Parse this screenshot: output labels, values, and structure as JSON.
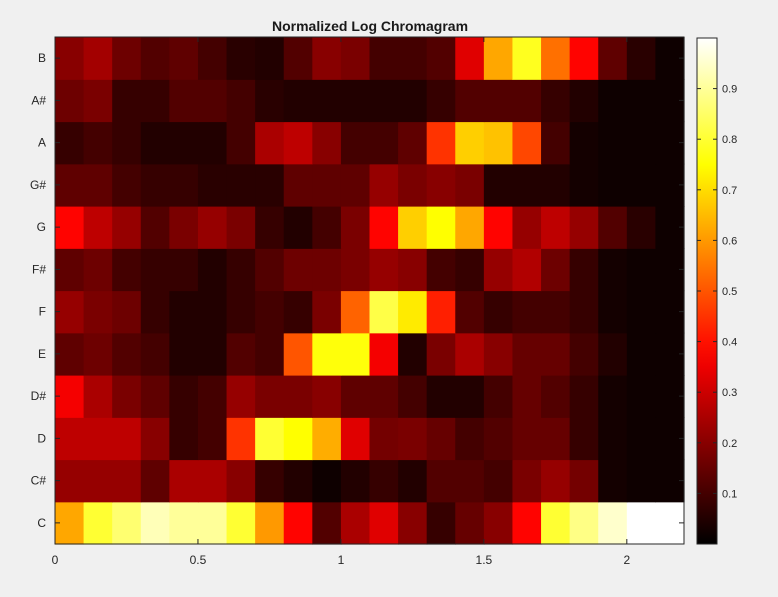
{
  "chart_data": {
    "type": "heatmap",
    "title": "Normalized Log Chromagram",
    "xlabel": "",
    "ylabel": "",
    "x_ticks": [
      {
        "value": 0,
        "label": "0"
      },
      {
        "value": 0.5,
        "label": "0.5"
      },
      {
        "value": 1,
        "label": "1"
      },
      {
        "value": 1.5,
        "label": "1.5"
      },
      {
        "value": 2,
        "label": "2"
      }
    ],
    "xlim": [
      0,
      2.2
    ],
    "y_labels": [
      "C",
      "C#",
      "D",
      "D#",
      "E",
      "F",
      "F#",
      "G",
      "G#",
      "A",
      "A#",
      "B"
    ],
    "colormap": "hot",
    "clim": [
      0,
      1
    ],
    "colorbar_ticks": [
      {
        "value": 0.1,
        "label": "0.1"
      },
      {
        "value": 0.2,
        "label": "0.2"
      },
      {
        "value": 0.3,
        "label": "0.3"
      },
      {
        "value": 0.4,
        "label": "0.4"
      },
      {
        "value": 0.5,
        "label": "0.5"
      },
      {
        "value": 0.6,
        "label": "0.6"
      },
      {
        "value": 0.7,
        "label": "0.7"
      },
      {
        "value": 0.8,
        "label": "0.8"
      },
      {
        "value": 0.9,
        "label": "0.9"
      }
    ],
    "time_bins": 22,
    "values": [
      [
        0.62,
        0.8,
        0.86,
        0.93,
        0.9,
        0.9,
        0.8,
        0.6,
        0.38,
        0.12,
        0.25,
        0.33,
        0.2,
        0.08,
        0.15,
        0.2,
        0.38,
        0.8,
        0.88,
        0.95,
        1.0,
        1.0
      ],
      [
        0.22,
        0.22,
        0.22,
        0.14,
        0.25,
        0.25,
        0.2,
        0.08,
        0.05,
        0.02,
        0.05,
        0.08,
        0.05,
        0.12,
        0.12,
        0.1,
        0.18,
        0.22,
        0.17,
        0.03,
        0.02,
        0.02
      ],
      [
        0.28,
        0.28,
        0.28,
        0.2,
        0.08,
        0.1,
        0.45,
        0.8,
        0.75,
        0.63,
        0.33,
        0.17,
        0.18,
        0.15,
        0.1,
        0.12,
        0.15,
        0.15,
        0.08,
        0.03,
        0.02,
        0.02
      ],
      [
        0.36,
        0.25,
        0.18,
        0.14,
        0.08,
        0.1,
        0.22,
        0.18,
        0.18,
        0.2,
        0.14,
        0.14,
        0.1,
        0.05,
        0.05,
        0.1,
        0.15,
        0.12,
        0.08,
        0.03,
        0.02,
        0.02
      ],
      [
        0.14,
        0.16,
        0.12,
        0.1,
        0.05,
        0.05,
        0.12,
        0.1,
        0.5,
        0.76,
        0.76,
        0.36,
        0.05,
        0.18,
        0.25,
        0.2,
        0.15,
        0.15,
        0.1,
        0.05,
        0.02,
        0.02
      ],
      [
        0.22,
        0.18,
        0.16,
        0.08,
        0.05,
        0.05,
        0.08,
        0.1,
        0.08,
        0.18,
        0.52,
        0.82,
        0.72,
        0.42,
        0.12,
        0.08,
        0.1,
        0.1,
        0.08,
        0.03,
        0.02,
        0.02
      ],
      [
        0.14,
        0.16,
        0.1,
        0.08,
        0.08,
        0.05,
        0.08,
        0.12,
        0.16,
        0.16,
        0.18,
        0.22,
        0.2,
        0.1,
        0.08,
        0.22,
        0.26,
        0.16,
        0.08,
        0.03,
        0.02,
        0.02
      ],
      [
        0.38,
        0.28,
        0.22,
        0.12,
        0.18,
        0.22,
        0.18,
        0.08,
        0.05,
        0.1,
        0.18,
        0.38,
        0.68,
        0.75,
        0.62,
        0.38,
        0.22,
        0.28,
        0.22,
        0.12,
        0.06,
        0.02
      ],
      [
        0.14,
        0.14,
        0.1,
        0.08,
        0.08,
        0.06,
        0.06,
        0.06,
        0.14,
        0.14,
        0.14,
        0.22,
        0.18,
        0.2,
        0.18,
        0.05,
        0.05,
        0.05,
        0.03,
        0.02,
        0.02,
        0.02
      ],
      [
        0.08,
        0.1,
        0.08,
        0.05,
        0.05,
        0.05,
        0.1,
        0.25,
        0.28,
        0.2,
        0.1,
        0.1,
        0.14,
        0.45,
        0.68,
        0.66,
        0.48,
        0.1,
        0.03,
        0.02,
        0.02,
        0.02
      ],
      [
        0.16,
        0.18,
        0.08,
        0.08,
        0.12,
        0.12,
        0.1,
        0.06,
        0.05,
        0.05,
        0.05,
        0.05,
        0.05,
        0.08,
        0.12,
        0.12,
        0.12,
        0.08,
        0.05,
        0.02,
        0.02,
        0.02
      ],
      [
        0.2,
        0.24,
        0.16,
        0.12,
        0.14,
        0.1,
        0.06,
        0.05,
        0.12,
        0.2,
        0.18,
        0.1,
        0.1,
        0.12,
        0.33,
        0.62,
        0.78,
        0.54,
        0.38,
        0.14,
        0.06,
        0.02
      ]
    ]
  }
}
